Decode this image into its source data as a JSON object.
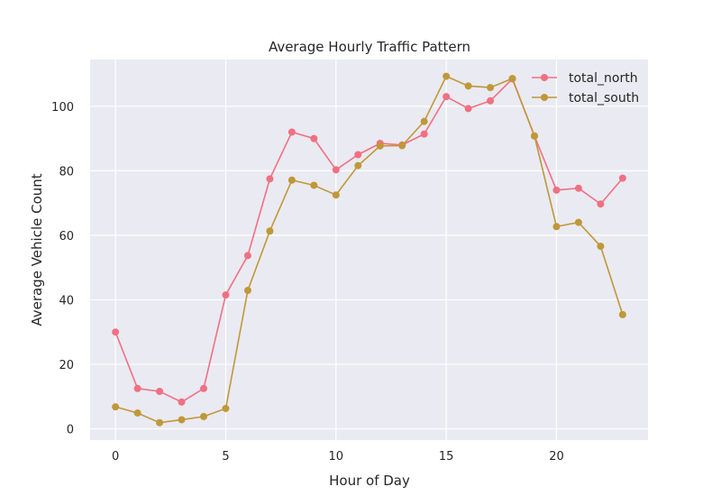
{
  "chart_data": {
    "type": "line",
    "title": "Average Hourly Traffic Pattern",
    "xlabel": "Hour of Day",
    "ylabel": "Average Vehicle Count",
    "x": [
      0,
      1,
      2,
      3,
      4,
      5,
      6,
      7,
      8,
      9,
      10,
      11,
      12,
      13,
      14,
      15,
      16,
      17,
      18,
      19,
      20,
      21,
      22,
      23
    ],
    "xlim": [
      -1.15,
      24.15
    ],
    "ylim": [
      -3.5,
      114.5
    ],
    "xticks": [
      0,
      5,
      10,
      15,
      20
    ],
    "yticks": [
      0,
      20,
      40,
      60,
      80,
      100
    ],
    "grid": true,
    "legend_position": "top-right",
    "series": [
      {
        "name": "total_north",
        "color": "#f07082",
        "values": [
          30.0,
          12.5,
          11.6,
          8.3,
          12.5,
          41.5,
          53.7,
          77.5,
          92.0,
          90.0,
          80.3,
          85.0,
          88.5,
          88.0,
          91.4,
          103.0,
          99.3,
          101.7,
          108.5,
          90.8,
          74.0,
          74.6,
          69.7,
          77.7
        ]
      },
      {
        "name": "total_south",
        "color": "#bf9838",
        "values": [
          6.8,
          4.9,
          1.9,
          2.8,
          3.8,
          6.3,
          42.9,
          61.3,
          77.1,
          75.5,
          72.5,
          81.6,
          87.7,
          87.8,
          95.3,
          109.3,
          106.3,
          105.8,
          108.6,
          90.8,
          62.7,
          64.0,
          56.6,
          35.4
        ]
      }
    ]
  }
}
